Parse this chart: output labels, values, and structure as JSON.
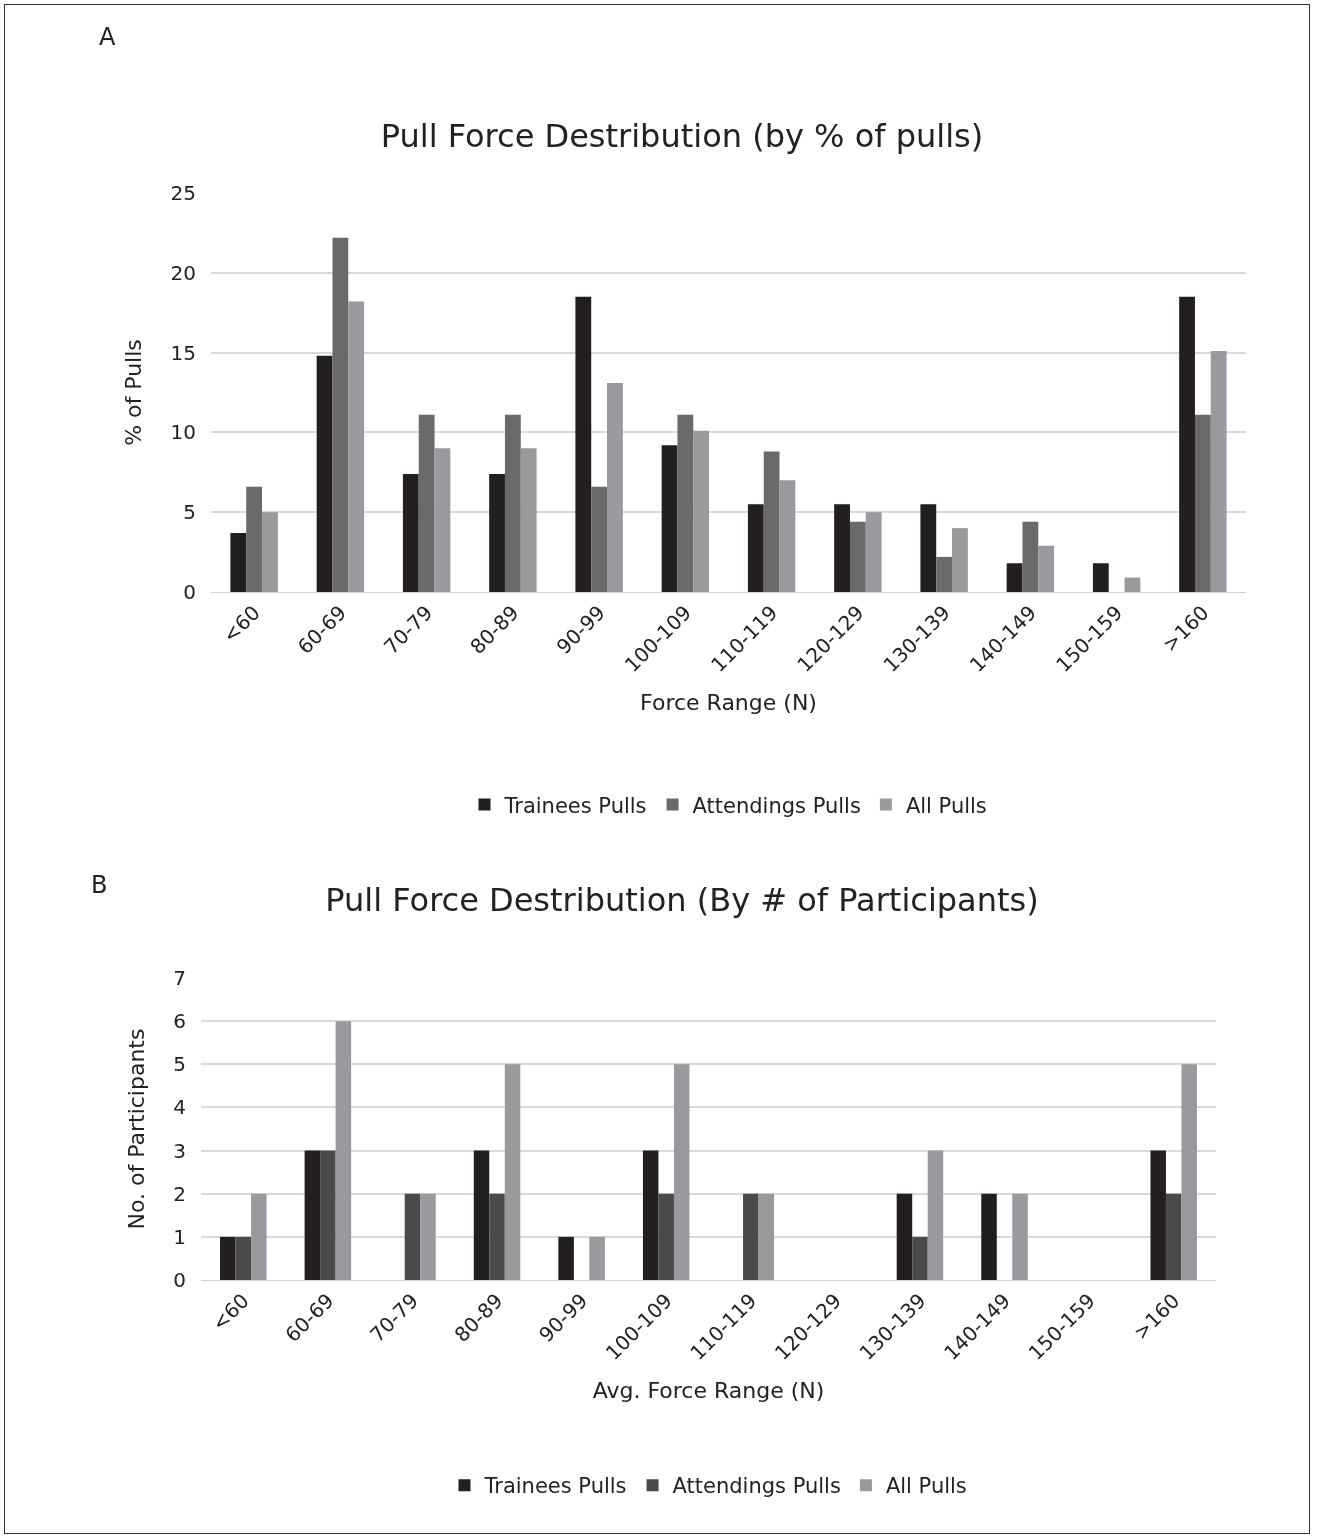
{
  "chart_data": [
    {
      "type": "bar",
      "title": "Pull Force Destribution (by % of pulls)",
      "xlabel": "Force Range (N)",
      "ylabel": "% of Pulls",
      "annotations": [
        "A"
      ],
      "categories": [
        "<60",
        "60-69",
        "70-79",
        "80-89",
        "90-99",
        "100-109",
        "110-119",
        "120-129",
        "130-139",
        "140-149",
        "150-159",
        ">160"
      ],
      "series": [
        {
          "name": "Trainees Pulls",
          "color": "#231f20",
          "values": [
            3.7,
            14.8,
            7.4,
            7.4,
            18.5,
            9.2,
            5.5,
            5.5,
            5.5,
            1.8,
            1.8,
            18.5
          ]
        },
        {
          "name": "Attendings Pulls",
          "color": "#6a6a6a",
          "values": [
            6.6,
            22.2,
            11.1,
            11.1,
            6.6,
            11.1,
            8.8,
            4.4,
            2.2,
            4.4,
            0,
            11.1
          ]
        },
        {
          "name": "All Pulls",
          "color": "#9a9a9e",
          "values": [
            5.0,
            18.2,
            9.0,
            9.0,
            13.1,
            10.1,
            7.0,
            5.0,
            4.0,
            2.9,
            0.9,
            15.1
          ]
        }
      ],
      "ylim": [
        0,
        25
      ],
      "yticks": [
        0,
        5,
        10,
        15,
        20,
        25
      ],
      "grid": "y",
      "legend": "bottom"
    },
    {
      "type": "bar",
      "title": "Pull Force Destribution (By # of Participants)",
      "xlabel": "Avg. Force Range (N)",
      "ylabel": "No. of Participants",
      "annotations": [
        "B"
      ],
      "categories": [
        "<60",
        "60-69",
        "70-79",
        "80-89",
        "90-99",
        "100-109",
        "110-119",
        "120-129",
        "130-139",
        "140-149",
        "150-159",
        ">160"
      ],
      "series": [
        {
          "name": "Trainees Pulls",
          "color": "#231f20",
          "values": [
            1,
            3,
            0,
            3,
            1,
            3,
            0,
            0,
            2,
            2,
            0,
            3
          ]
        },
        {
          "name": "Attendings Pulls",
          "color": "#4a4a4a",
          "values": [
            1,
            3,
            2,
            2,
            0,
            2,
            2,
            0,
            1,
            0,
            0,
            2
          ]
        },
        {
          "name": "All Pulls",
          "color": "#9a9a9e",
          "values": [
            2,
            6,
            2,
            5,
            1,
            5,
            2,
            0,
            3,
            2,
            0,
            5
          ]
        }
      ],
      "ylim": [
        0,
        7
      ],
      "yticks": [
        0,
        1,
        2,
        3,
        4,
        5,
        6,
        7
      ],
      "grid": "y",
      "legend": "bottom"
    }
  ]
}
